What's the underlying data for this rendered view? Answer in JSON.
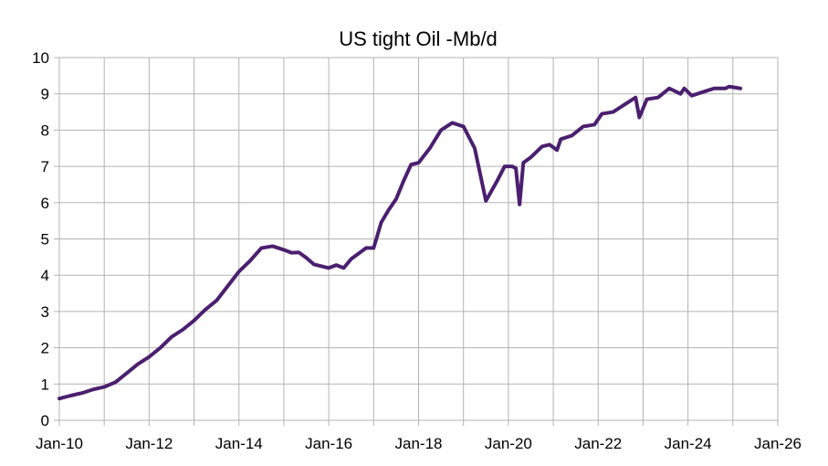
{
  "chart_data": {
    "type": "line",
    "title": "US tight Oil -Mb/d",
    "xlabel": "",
    "ylabel": "",
    "x_tick_labels": [
      "Jan-10",
      "Jan-12",
      "Jan-14",
      "Jan-16",
      "Jan-18",
      "Jan-20",
      "Jan-22",
      "Jan-24",
      "Jan-26"
    ],
    "y_tick_labels": [
      "0",
      "1",
      "2",
      "3",
      "4",
      "5",
      "6",
      "7",
      "8",
      "9",
      "10"
    ],
    "xlim": [
      "2010-01",
      "2026-01"
    ],
    "ylim": [
      0,
      10
    ],
    "grid": true,
    "legend": "none",
    "line_color": "#4b1f6f",
    "grid_color": "#b3b3b3",
    "series": [
      {
        "x": [
          "2010-01",
          "2010-04",
          "2010-07",
          "2010-10",
          "2011-01",
          "2011-04",
          "2011-07",
          "2011-10",
          "2012-01",
          "2012-04",
          "2012-07",
          "2012-10",
          "2013-01",
          "2013-04",
          "2013-07",
          "2013-10",
          "2014-01",
          "2014-04",
          "2014-07",
          "2014-10",
          "2015-01",
          "2015-03",
          "2015-05",
          "2015-07",
          "2015-09",
          "2015-11",
          "2016-01",
          "2016-03",
          "2016-05",
          "2016-07",
          "2016-09",
          "2016-11",
          "2017-01",
          "2017-03",
          "2017-05",
          "2017-07",
          "2017-09",
          "2017-11",
          "2018-01",
          "2018-04",
          "2018-07",
          "2018-10",
          "2019-01",
          "2019-04",
          "2019-07",
          "2019-10",
          "2019-12",
          "2020-02",
          "2020-03",
          "2020-04",
          "2020-05",
          "2020-07",
          "2020-10",
          "2020-12",
          "2021-02",
          "2021-03",
          "2021-06",
          "2021-09",
          "2021-12",
          "2022-02",
          "2022-05",
          "2022-08",
          "2022-11",
          "2022-12",
          "2023-02",
          "2023-05",
          "2023-08",
          "2023-11",
          "2023-12",
          "2024-02",
          "2024-05",
          "2024-08",
          "2024-11",
          "2024-12",
          "2025-03"
        ],
        "values": [
          0.6,
          0.68,
          0.75,
          0.85,
          0.92,
          1.05,
          1.3,
          1.55,
          1.75,
          2.0,
          2.3,
          2.5,
          2.75,
          3.05,
          3.3,
          3.7,
          4.1,
          4.4,
          4.75,
          4.8,
          4.7,
          4.62,
          4.63,
          4.48,
          4.3,
          4.25,
          4.2,
          4.28,
          4.2,
          4.45,
          4.6,
          4.75,
          4.75,
          5.45,
          5.8,
          6.1,
          6.6,
          7.05,
          7.1,
          7.5,
          8.0,
          8.2,
          8.1,
          7.5,
          6.05,
          6.6,
          7.0,
          7.0,
          6.95,
          5.95,
          7.1,
          7.25,
          7.55,
          7.6,
          7.45,
          7.75,
          7.85,
          8.1,
          8.15,
          8.45,
          8.5,
          8.7,
          8.9,
          8.35,
          8.85,
          8.9,
          9.15,
          9.0,
          9.15,
          8.95,
          9.05,
          9.15,
          9.15,
          9.2,
          9.15
        ]
      }
    ]
  }
}
